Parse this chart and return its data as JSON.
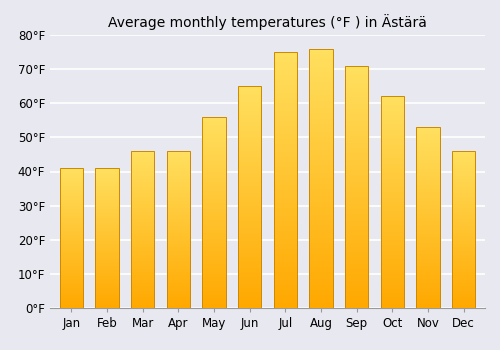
{
  "title": "Average monthly temperatures (°F ) in Ästärä",
  "months": [
    "Jan",
    "Feb",
    "Mar",
    "Apr",
    "May",
    "Jun",
    "Jul",
    "Aug",
    "Sep",
    "Oct",
    "Nov",
    "Dec"
  ],
  "values": [
    41,
    41,
    46,
    46,
    56,
    65,
    75,
    76,
    71,
    62,
    53,
    46
  ],
  "ylim": [
    0,
    80
  ],
  "yticks": [
    0,
    10,
    20,
    30,
    40,
    50,
    60,
    70,
    80
  ],
  "ytick_labels": [
    "0°F",
    "10°F",
    "20°F",
    "30°F",
    "40°F",
    "50°F",
    "60°F",
    "70°F",
    "80°F"
  ],
  "background_color": "#e8e8f0",
  "grid_color": "#ffffff",
  "title_fontsize": 10,
  "tick_fontsize": 8.5,
  "bar_edge_color": "#cc8800",
  "bar_color_bottom": "#F5A800",
  "bar_color_top": "#FFE060"
}
